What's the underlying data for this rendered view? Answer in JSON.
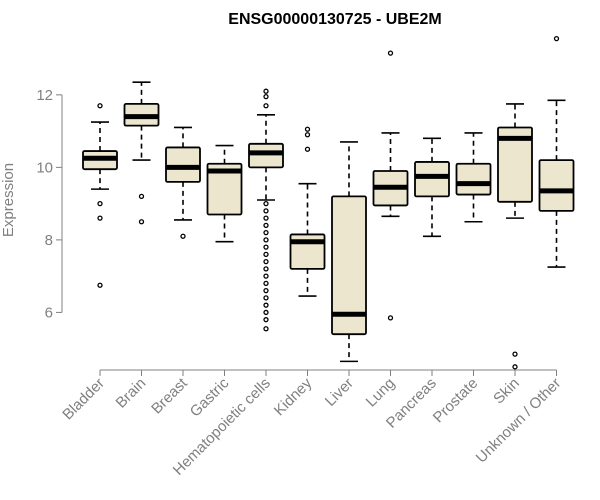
{
  "chart_data": {
    "type": "box",
    "title": "ENSG00000130725 - UBE2M",
    "ylabel": "Expression",
    "xlabel": "",
    "ylim": [
      4.55,
      13.65
    ],
    "y_ticks": [
      6,
      8,
      10,
      12
    ],
    "grid": false,
    "box_fill": "#ede6cf",
    "outline_color": "#000000",
    "axis_color": "#808080",
    "categories": [
      "Bladder",
      "Brain",
      "Breast",
      "Gastric",
      "Hematopoietic cells",
      "Kidney",
      "Liver",
      "Lung",
      "Pancreas",
      "Prostate",
      "Skin",
      "Unknown / Other"
    ],
    "boxes": [
      {
        "whisker_low": 9.4,
        "q1": 9.95,
        "median": 10.25,
        "q3": 10.45,
        "whisker_high": 11.25,
        "outliers": [
          11.7,
          9.0,
          8.6,
          6.75
        ]
      },
      {
        "whisker_low": 10.2,
        "q1": 11.15,
        "median": 11.4,
        "q3": 11.75,
        "whisker_high": 12.35,
        "outliers": [
          9.2,
          8.5
        ]
      },
      {
        "whisker_low": 8.55,
        "q1": 9.6,
        "median": 10.0,
        "q3": 10.55,
        "whisker_high": 11.1,
        "outliers": [
          8.1
        ]
      },
      {
        "whisker_low": 7.95,
        "q1": 8.7,
        "median": 9.9,
        "q3": 10.1,
        "whisker_high": 10.6,
        "outliers": []
      },
      {
        "whisker_low": 9.1,
        "q1": 10.0,
        "median": 10.4,
        "q3": 10.65,
        "whisker_high": 11.45,
        "outliers": [
          12.1,
          11.95,
          11.7,
          9.0,
          8.8,
          8.6,
          8.4,
          8.2,
          8.0,
          7.8,
          7.6,
          7.4,
          7.2,
          7.0,
          6.8,
          6.6,
          6.4,
          6.2,
          6.0,
          5.8,
          5.55
        ]
      },
      {
        "whisker_low": 6.45,
        "q1": 7.2,
        "median": 7.95,
        "q3": 8.15,
        "whisker_high": 9.55,
        "outliers": [
          11.05,
          10.9,
          10.5
        ]
      },
      {
        "whisker_low": 4.65,
        "q1": 5.4,
        "median": 5.95,
        "q3": 9.2,
        "whisker_high": 10.7,
        "outliers": []
      },
      {
        "whisker_low": 8.65,
        "q1": 8.95,
        "median": 9.45,
        "q3": 9.9,
        "whisker_high": 10.95,
        "outliers": [
          13.15,
          5.85
        ]
      },
      {
        "whisker_low": 8.1,
        "q1": 9.2,
        "median": 9.75,
        "q3": 10.15,
        "whisker_high": 10.8,
        "outliers": []
      },
      {
        "whisker_low": 8.5,
        "q1": 9.25,
        "median": 9.55,
        "q3": 10.1,
        "whisker_high": 10.95,
        "outliers": []
      },
      {
        "whisker_low": 8.6,
        "q1": 9.05,
        "median": 10.8,
        "q3": 11.1,
        "whisker_high": 11.75,
        "outliers": [
          4.85,
          4.5
        ]
      },
      {
        "whisker_low": 7.25,
        "q1": 8.8,
        "median": 9.35,
        "q3": 10.2,
        "whisker_high": 11.85,
        "outliers": [
          13.55
        ]
      }
    ]
  }
}
